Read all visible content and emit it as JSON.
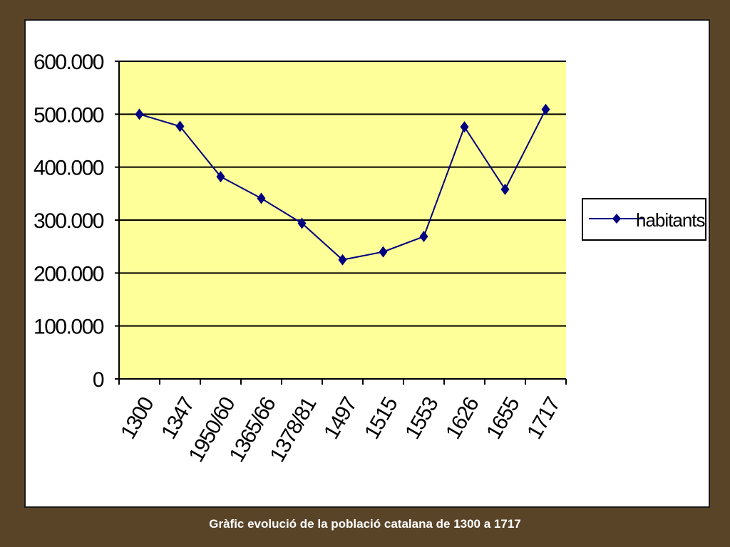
{
  "caption": "Gràfic evolució de la població catalana de 1300 a 1717",
  "chart_data": {
    "type": "line",
    "title": "",
    "xlabel": "",
    "ylabel": "",
    "categories": [
      "1300",
      "1347",
      "1950/60",
      "1365/66",
      "1378/81",
      "1497",
      "1515",
      "1553",
      "1626",
      "1655",
      "1717"
    ],
    "series": [
      {
        "name": "habitants",
        "values": [
          500000,
          477000,
          382000,
          341000,
          294000,
          225000,
          240000,
          269000,
          476000,
          358000,
          509000
        ]
      }
    ],
    "ylim": [
      0,
      600000
    ],
    "yticks": [
      0,
      100000,
      200000,
      300000,
      400000,
      500000,
      600000
    ],
    "ytick_labels": [
      "0",
      "100.000",
      "200.000",
      "300.000",
      "400.000",
      "500.000",
      "600.000"
    ],
    "grid": true,
    "legend": "right",
    "colors": {
      "plot_bg": "#ffff99",
      "series": "#000080",
      "grid": "#000000"
    }
  }
}
